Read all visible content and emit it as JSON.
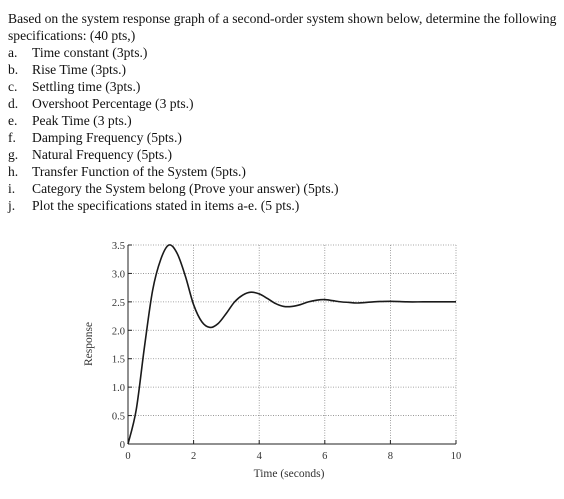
{
  "question": {
    "intro": "Based on the system response graph of a second-order system shown below, determine the following specifications: (40 pts,)",
    "items": [
      {
        "letter": "a.",
        "text": "Time constant (3pts.)"
      },
      {
        "letter": "b.",
        "text": "Rise Time (3pts.)"
      },
      {
        "letter": "c.",
        "text": "Settling time (3pts.)"
      },
      {
        "letter": "d.",
        "text": "Overshoot Percentage (3 pts.)"
      },
      {
        "letter": "e.",
        "text": "Peak Time (3 pts.)"
      },
      {
        "letter": "f.",
        "text": "Damping Frequency (5pts.)"
      },
      {
        "letter": "g.",
        "text": "Natural Frequency (5pts.)"
      },
      {
        "letter": "h.",
        "text": "Transfer Function of the System (5pts.)"
      },
      {
        "letter": "i.",
        "text": "Category the System belong (Prove your answer) (5pts.)"
      },
      {
        "letter": "j.",
        "text": "Plot the specifications stated in items a-e. (5 pts.)"
      }
    ]
  },
  "chart_data": {
    "type": "line",
    "title": "",
    "xlabel": "Time (seconds)",
    "ylabel": "Response",
    "xlim": [
      0,
      10
    ],
    "ylim": [
      0,
      3.5
    ],
    "x_ticks": [
      0,
      2,
      4,
      6,
      8,
      10
    ],
    "x_tick_labels": [
      "0",
      "2",
      "4",
      "6",
      "8",
      "10"
    ],
    "y_ticks": [
      0,
      0.5,
      1.0,
      1.5,
      2.0,
      2.5,
      3.0,
      3.5
    ],
    "y_tick_labels": [
      "0",
      "0.5",
      "1.0",
      "1.5",
      "2.0",
      "2.5",
      "3.0",
      "3.5"
    ],
    "grid": true,
    "series": [
      {
        "x": [
          0,
          0.25,
          0.5,
          0.75,
          1.0,
          1.25,
          1.5,
          1.75,
          2.0,
          2.25,
          2.5,
          2.75,
          3.0,
          3.25,
          3.5,
          3.75,
          4.0,
          4.25,
          4.5,
          4.75,
          5.0,
          5.25,
          5.5,
          5.75,
          6.0,
          6.25,
          6.5,
          6.75,
          7.0,
          7.5,
          8.0,
          8.5,
          9.0,
          9.5,
          10.0
        ],
        "y": [
          0,
          0.6,
          1.7,
          2.7,
          3.25,
          3.5,
          3.35,
          2.95,
          2.45,
          2.15,
          2.05,
          2.12,
          2.3,
          2.5,
          2.62,
          2.67,
          2.64,
          2.56,
          2.47,
          2.42,
          2.42,
          2.45,
          2.5,
          2.53,
          2.54,
          2.52,
          2.5,
          2.49,
          2.48,
          2.5,
          2.51,
          2.5,
          2.5,
          2.5,
          2.5
        ]
      }
    ]
  }
}
